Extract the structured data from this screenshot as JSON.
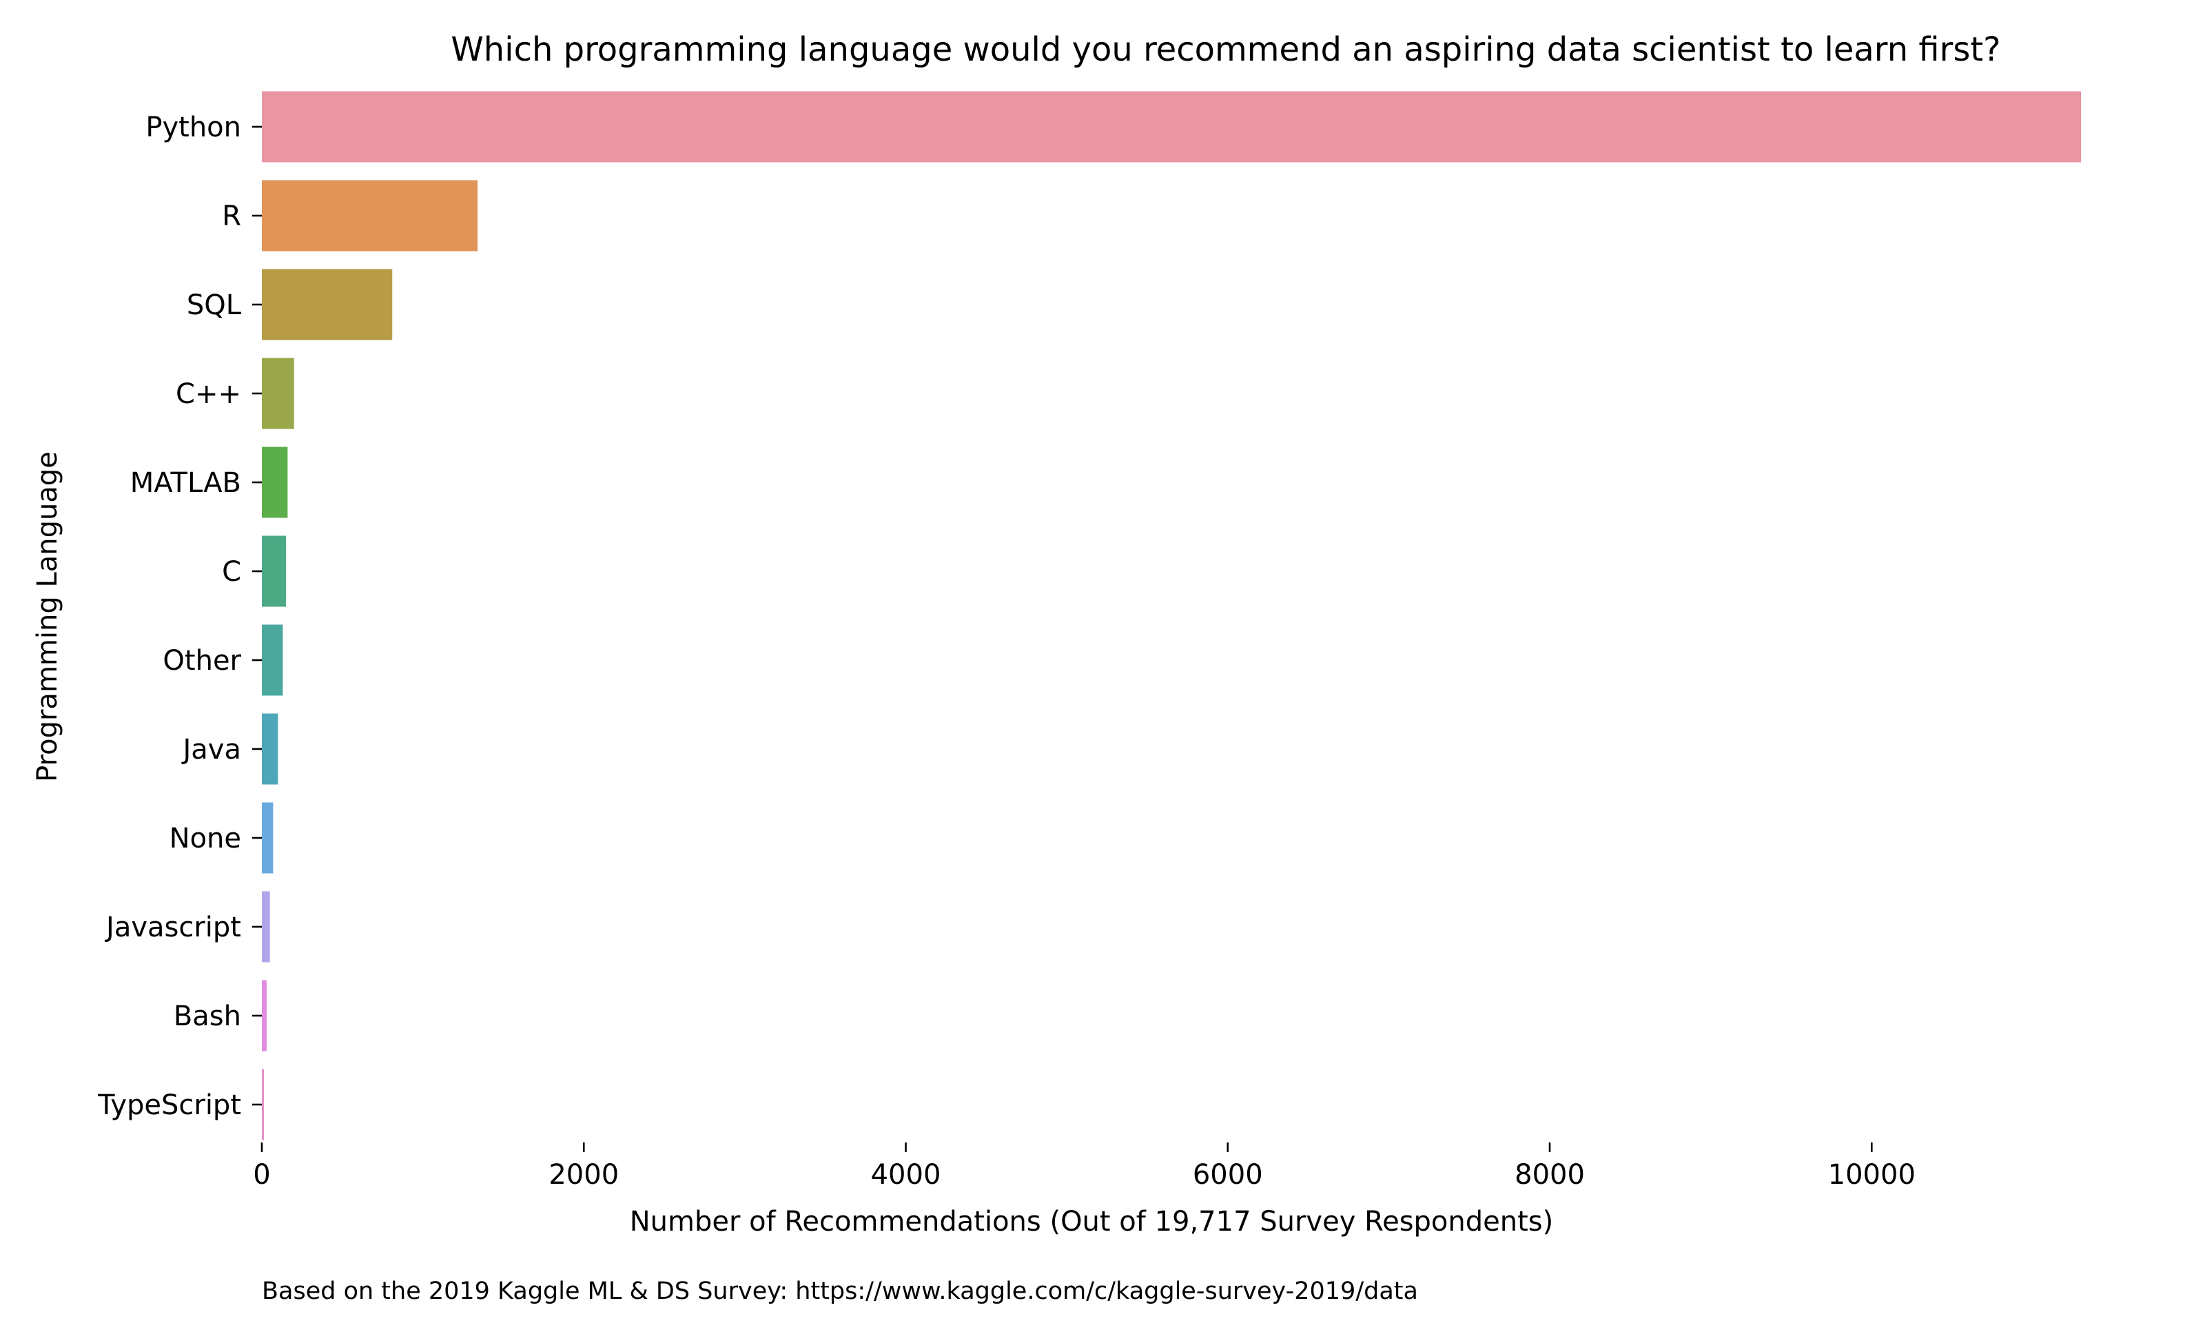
{
  "chart_data": {
    "type": "bar",
    "orientation": "horizontal",
    "title": "Which programming language would you recommend an aspiring data scientist to learn first?",
    "xlabel": "Number of Recommendations (Out of 19,717 Survey Respondents)",
    "ylabel": "Programming Language",
    "caption": "Based on the 2019 Kaggle ML & DS Survey: https://www.kaggle.com/c/kaggle-survey-2019/data",
    "categories": [
      "Python",
      "R",
      "SQL",
      "C++",
      "MATLAB",
      "C",
      "Other",
      "Java",
      "None",
      "Javascript",
      "Bash",
      "TypeScript"
    ],
    "values": [
      11300,
      1340,
      810,
      200,
      160,
      150,
      130,
      100,
      70,
      50,
      30,
      10
    ],
    "colors": [
      "#ea95a2",
      "#e19457",
      "#b89c45",
      "#9aa64a",
      "#5cae4a",
      "#4caa85",
      "#4ba89c",
      "#4ea6b9",
      "#6aaae0",
      "#b1a6ea",
      "#e08ce0",
      "#e690c6"
    ],
    "xlim": [
      0,
      11300
    ],
    "xticks": [
      0,
      2000,
      4000,
      6000,
      8000,
      10000
    ],
    "xtick_labels": [
      "0",
      "2000",
      "4000",
      "6000",
      "8000",
      "10000"
    ],
    "grid": false,
    "legend": "none"
  }
}
